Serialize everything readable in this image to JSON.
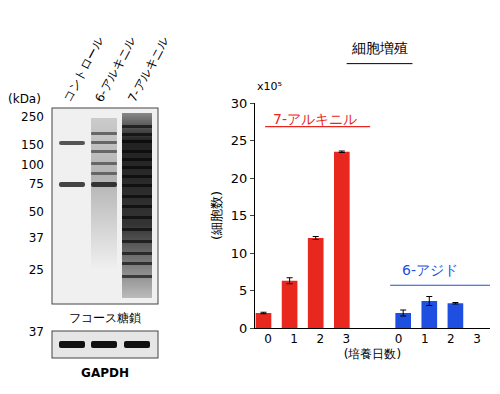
{
  "chart_data": {
    "type": "bar",
    "title": "細胞増殖",
    "x_label": "(培養日数)",
    "y_label": "(細胞数)",
    "annotations": [
      "x10⁵"
    ],
    "categories": [
      "0",
      "1",
      "2",
      "3",
      null,
      "0",
      "1",
      "2",
      "3"
    ],
    "series": [
      {
        "name": "7-アルキニル",
        "color": "#e8271f",
        "values": [
          2,
          6.3,
          12,
          23.5,
          null,
          null,
          null,
          null,
          null
        ],
        "error": [
          0.1,
          0.4,
          0.2,
          0.1,
          null,
          null,
          null,
          null,
          null
        ]
      },
      {
        "name": "6-アジド",
        "color": "#1f4fe0",
        "values": [
          null,
          null,
          null,
          null,
          null,
          2,
          3.6,
          3.3,
          null
        ],
        "error": [
          null,
          null,
          null,
          null,
          null,
          0.4,
          0.6,
          0.1,
          null
        ]
      }
    ],
    "ylim": [
      0,
      30
    ],
    "yticks": [
      0,
      5,
      10,
      15,
      20,
      25,
      30
    ],
    "grid": false
  },
  "blot": {
    "unit_label": "(kDa)",
    "lanes": [
      "コントロール",
      "6-アルキニル",
      "7-アルキニル"
    ],
    "markers": [
      250,
      150,
      100,
      75,
      50,
      37,
      25
    ],
    "main_label": "フコース糖鎖",
    "loading_control": {
      "marker": 37,
      "label": "GAPDH"
    }
  }
}
